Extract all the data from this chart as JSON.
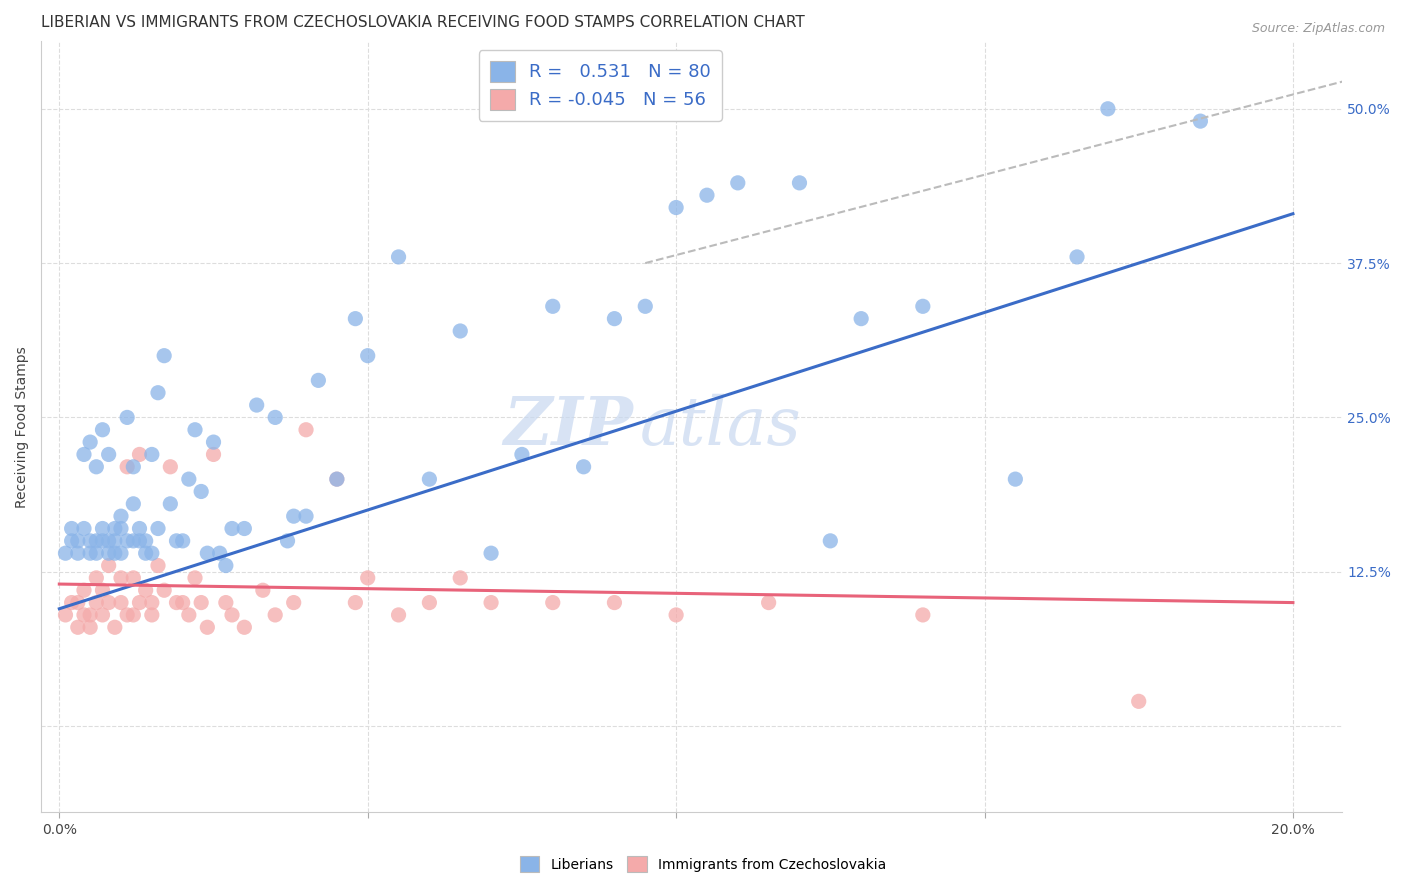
{
  "title": "LIBERIAN VS IMMIGRANTS FROM CZECHOSLOVAKIA RECEIVING FOOD STAMPS CORRELATION CHART",
  "source": "Source: ZipAtlas.com",
  "ylabel": "Receiving Food Stamps",
  "x_ticks": [
    0.0,
    0.05,
    0.1,
    0.15,
    0.2
  ],
  "x_tick_labels": [
    "0.0%",
    "",
    "",
    "",
    "20.0%"
  ],
  "y_ticks": [
    0.0,
    0.125,
    0.25,
    0.375,
    0.5
  ],
  "y_tick_labels": [
    "",
    "12.5%",
    "25.0%",
    "37.5%",
    "50.0%"
  ],
  "xlim": [
    -0.003,
    0.208
  ],
  "ylim": [
    -0.07,
    0.555
  ],
  "legend_labels": [
    "Liberians",
    "Immigrants from Czechoslovakia"
  ],
  "legend_R": [
    "0.531",
    "-0.045"
  ],
  "legend_N": [
    "80",
    "56"
  ],
  "blue_color": "#8AB4E8",
  "pink_color": "#F4AAAA",
  "blue_line_color": "#3B6CC7",
  "pink_line_color": "#E8637A",
  "dashed_line_color": "#BBBBBB",
  "watermark_zip": "ZIP",
  "watermark_atlas": "atlas",
  "blue_scatter_x": [
    0.001,
    0.002,
    0.002,
    0.003,
    0.003,
    0.004,
    0.004,
    0.005,
    0.005,
    0.005,
    0.006,
    0.006,
    0.006,
    0.007,
    0.007,
    0.007,
    0.008,
    0.008,
    0.008,
    0.009,
    0.009,
    0.009,
    0.01,
    0.01,
    0.01,
    0.011,
    0.011,
    0.012,
    0.012,
    0.012,
    0.013,
    0.013,
    0.014,
    0.014,
    0.015,
    0.015,
    0.016,
    0.016,
    0.017,
    0.018,
    0.019,
    0.02,
    0.021,
    0.022,
    0.023,
    0.024,
    0.025,
    0.026,
    0.027,
    0.028,
    0.03,
    0.032,
    0.035,
    0.037,
    0.038,
    0.04,
    0.042,
    0.045,
    0.048,
    0.05,
    0.055,
    0.06,
    0.065,
    0.07,
    0.075,
    0.08,
    0.085,
    0.09,
    0.095,
    0.1,
    0.105,
    0.11,
    0.12,
    0.13,
    0.14,
    0.155,
    0.165,
    0.185,
    0.125,
    0.17
  ],
  "blue_scatter_y": [
    0.14,
    0.15,
    0.16,
    0.14,
    0.15,
    0.16,
    0.22,
    0.15,
    0.14,
    0.23,
    0.15,
    0.14,
    0.21,
    0.15,
    0.24,
    0.16,
    0.15,
    0.14,
    0.22,
    0.15,
    0.14,
    0.16,
    0.17,
    0.14,
    0.16,
    0.25,
    0.15,
    0.18,
    0.15,
    0.21,
    0.16,
    0.15,
    0.15,
    0.14,
    0.14,
    0.22,
    0.16,
    0.27,
    0.3,
    0.18,
    0.15,
    0.15,
    0.2,
    0.24,
    0.19,
    0.14,
    0.23,
    0.14,
    0.13,
    0.16,
    0.16,
    0.26,
    0.25,
    0.15,
    0.17,
    0.17,
    0.28,
    0.2,
    0.33,
    0.3,
    0.38,
    0.2,
    0.32,
    0.14,
    0.22,
    0.34,
    0.21,
    0.33,
    0.34,
    0.42,
    0.43,
    0.44,
    0.44,
    0.33,
    0.34,
    0.2,
    0.38,
    0.49,
    0.15,
    0.5
  ],
  "pink_scatter_x": [
    0.001,
    0.002,
    0.003,
    0.003,
    0.004,
    0.004,
    0.005,
    0.005,
    0.006,
    0.006,
    0.007,
    0.007,
    0.008,
    0.008,
    0.009,
    0.01,
    0.01,
    0.011,
    0.011,
    0.012,
    0.012,
    0.013,
    0.013,
    0.014,
    0.015,
    0.015,
    0.016,
    0.017,
    0.018,
    0.019,
    0.02,
    0.021,
    0.022,
    0.023,
    0.024,
    0.025,
    0.027,
    0.028,
    0.03,
    0.033,
    0.035,
    0.038,
    0.04,
    0.045,
    0.048,
    0.05,
    0.055,
    0.06,
    0.065,
    0.07,
    0.08,
    0.09,
    0.1,
    0.115,
    0.14,
    0.175
  ],
  "pink_scatter_y": [
    0.09,
    0.1,
    0.1,
    0.08,
    0.09,
    0.11,
    0.09,
    0.08,
    0.1,
    0.12,
    0.09,
    0.11,
    0.1,
    0.13,
    0.08,
    0.1,
    0.12,
    0.09,
    0.21,
    0.09,
    0.12,
    0.1,
    0.22,
    0.11,
    0.09,
    0.1,
    0.13,
    0.11,
    0.21,
    0.1,
    0.1,
    0.09,
    0.12,
    0.1,
    0.08,
    0.22,
    0.1,
    0.09,
    0.08,
    0.11,
    0.09,
    0.1,
    0.24,
    0.2,
    0.1,
    0.12,
    0.09,
    0.1,
    0.12,
    0.1,
    0.1,
    0.1,
    0.09,
    0.1,
    0.09,
    0.02
  ],
  "blue_line_x": [
    0.0,
    0.2
  ],
  "blue_line_y": [
    0.095,
    0.415
  ],
  "pink_line_x": [
    0.0,
    0.2
  ],
  "pink_line_y": [
    0.115,
    0.1
  ],
  "dashed_line_x": [
    0.095,
    0.208
  ],
  "dashed_line_y": [
    0.375,
    0.522
  ],
  "background_color": "#FFFFFF",
  "grid_color": "#DDDDDD",
  "title_fontsize": 11,
  "axis_label_fontsize": 10,
  "tick_fontsize": 10,
  "right_tick_color": "#3B6CC7",
  "scatter_size": 120
}
